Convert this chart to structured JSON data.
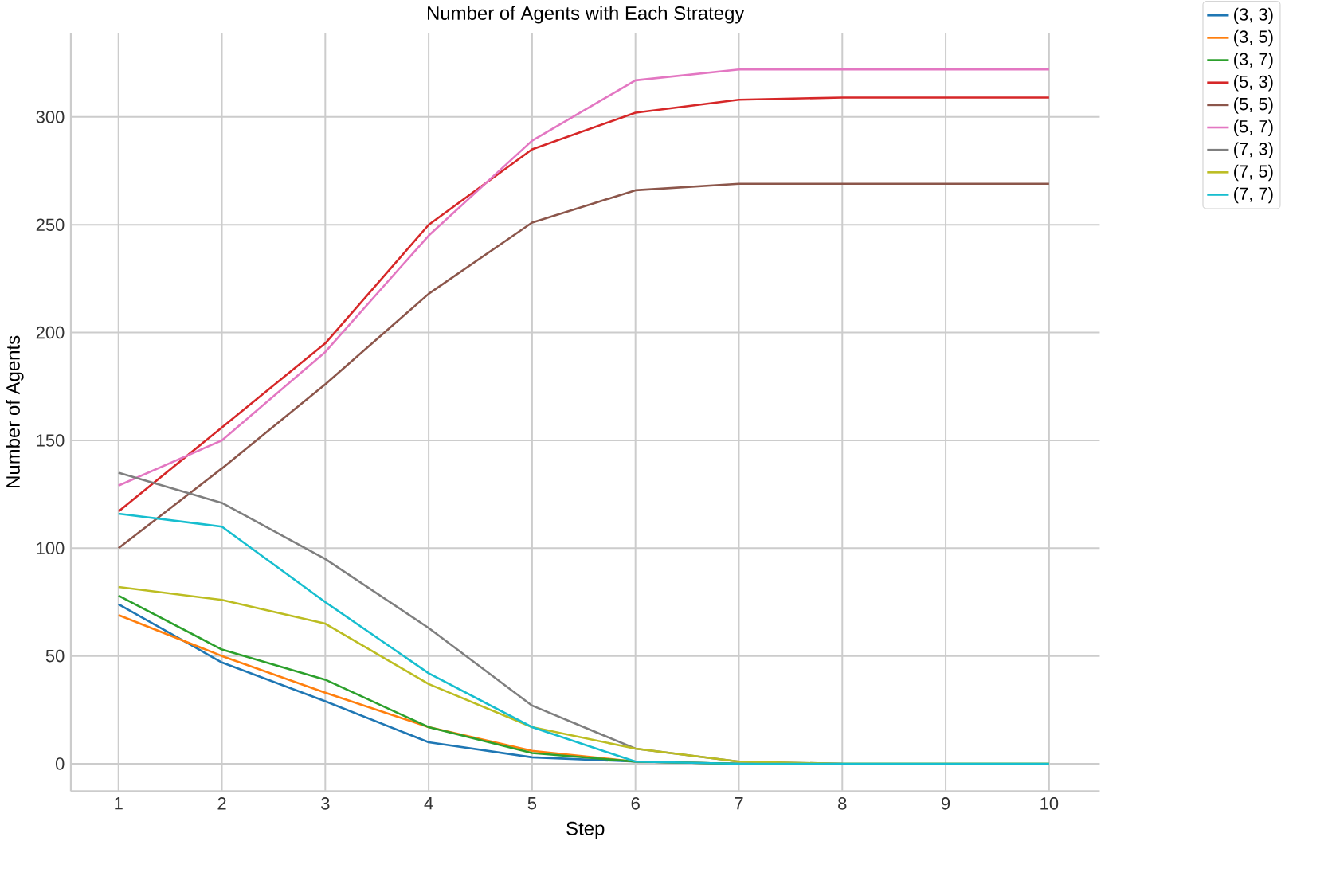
{
  "chart_data": {
    "type": "line",
    "title": "Number of Agents with Each Strategy",
    "xlabel": "Step",
    "ylabel": "Number of Agents",
    "x": [
      1,
      2,
      3,
      4,
      5,
      6,
      7,
      8,
      9,
      10
    ],
    "series": [
      {
        "name": "(3, 3)",
        "color": "#1f77b4",
        "values": [
          74,
          47,
          29,
          10,
          3,
          1,
          0,
          null,
          null,
          null
        ]
      },
      {
        "name": "(3, 5)",
        "color": "#ff7f0e",
        "values": [
          69,
          50,
          33,
          17,
          6,
          1,
          0,
          null,
          null,
          null
        ]
      },
      {
        "name": "(3, 7)",
        "color": "#2ca02c",
        "values": [
          78,
          53,
          39,
          17,
          5,
          1,
          0,
          0,
          0,
          0
        ]
      },
      {
        "name": "(5, 3)",
        "color": "#d62728",
        "values": [
          117,
          156,
          195,
          250,
          285,
          302,
          308,
          309,
          309,
          309
        ]
      },
      {
        "name": "(5, 5)",
        "color": "#8c564b",
        "values": [
          100,
          137,
          176,
          218,
          251,
          266,
          269,
          269,
          269,
          269
        ]
      },
      {
        "name": "(5, 7)",
        "color": "#e377c2",
        "values": [
          129,
          150,
          191,
          245,
          289,
          317,
          322,
          322,
          322,
          322
        ]
      },
      {
        "name": "(7, 3)",
        "color": "#7f7f7f",
        "values": [
          135,
          121,
          95,
          63,
          27,
          7,
          1,
          0,
          null,
          null
        ]
      },
      {
        "name": "(7, 5)",
        "color": "#bcbd22",
        "values": [
          82,
          76,
          65,
          37,
          17,
          7,
          1,
          0,
          0,
          0
        ]
      },
      {
        "name": "(7, 7)",
        "color": "#17becf",
        "values": [
          116,
          110,
          75,
          42,
          17,
          1,
          0,
          0,
          0,
          0
        ]
      }
    ],
    "xlim": [
      0.54,
      10.49
    ],
    "ylim": [
      -12.7,
      339
    ],
    "xticks": [
      1,
      2,
      3,
      4,
      5,
      6,
      7,
      8,
      9,
      10
    ],
    "yticks": [
      0,
      50,
      100,
      150,
      200,
      250,
      300
    ],
    "grid": true,
    "legend": "top right",
    "marker": "none",
    "line_style": "solid"
  }
}
